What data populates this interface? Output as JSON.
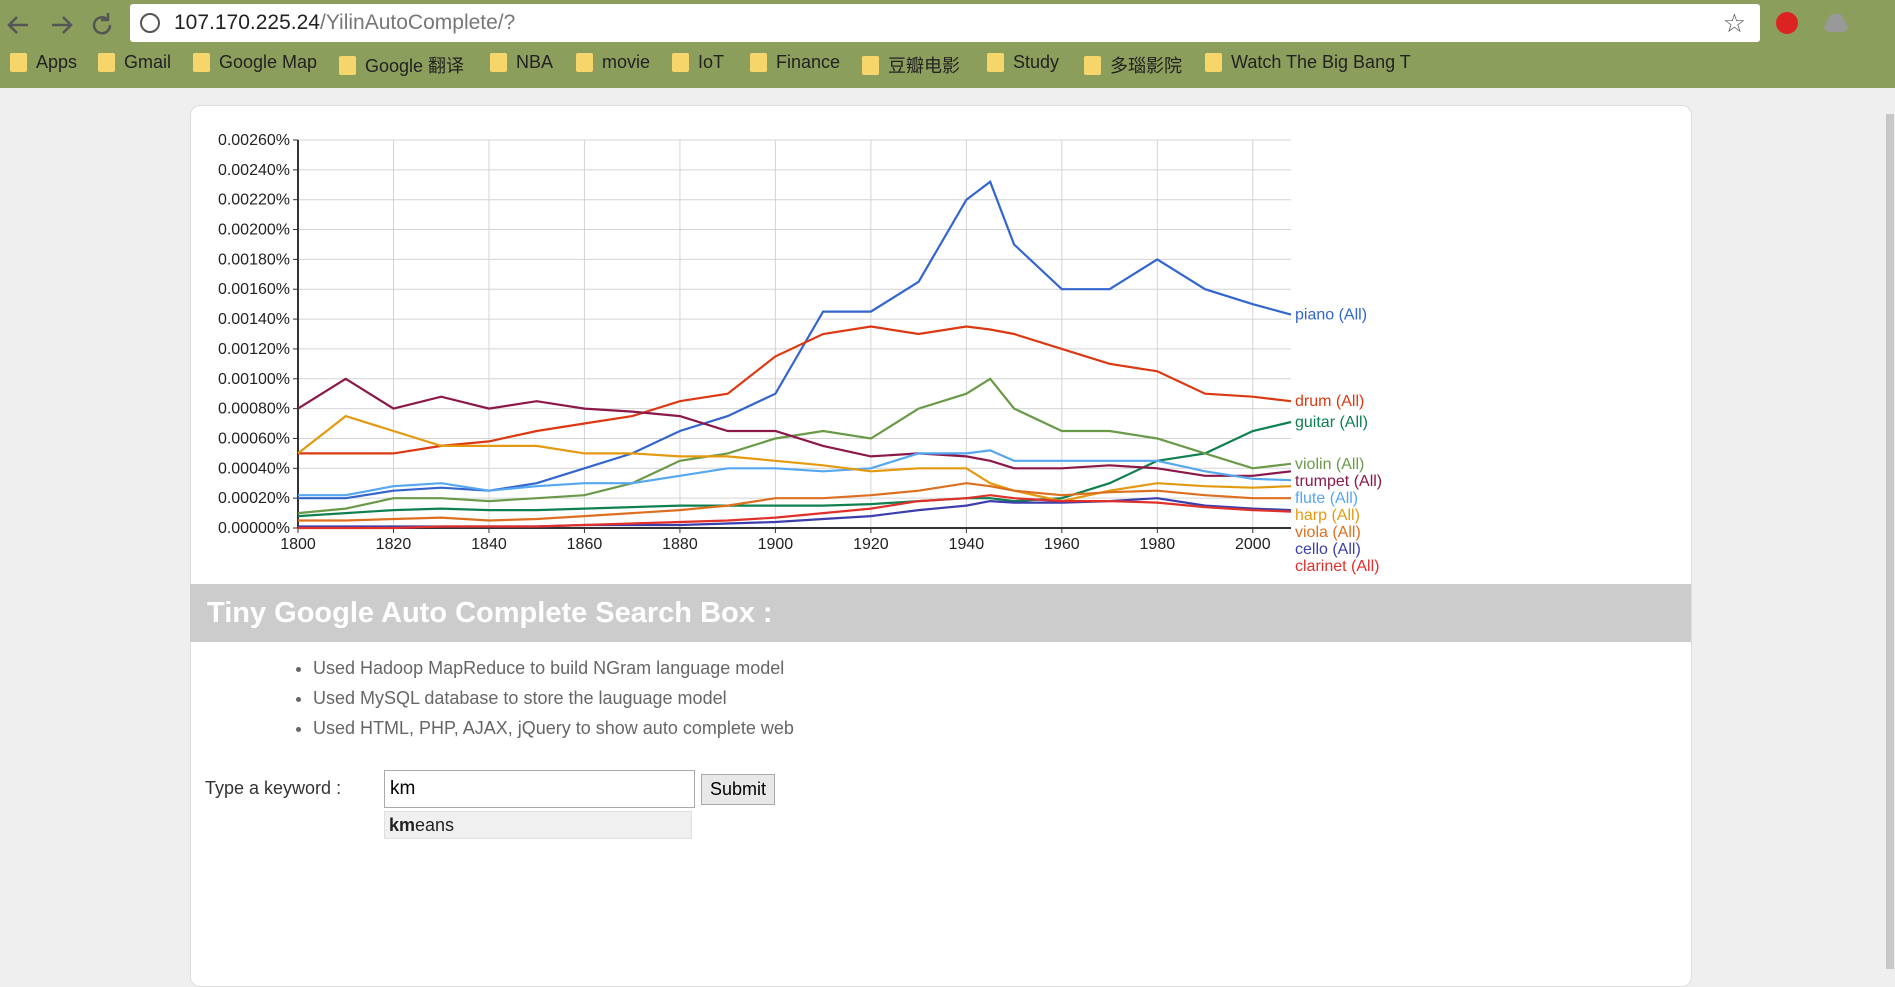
{
  "browser": {
    "url_host": "107.170.225.24",
    "url_path": "/YilinAutoComplete/?",
    "bookmarks": [
      "Apps",
      "Gmail",
      "Google Map",
      "Google 翻译",
      "NBA",
      "movie",
      "IoT",
      "Finance",
      "豆瓣电影",
      "Study",
      "多瑙影院",
      "Watch The Big Bang T"
    ]
  },
  "chart_data": {
    "type": "line",
    "x": [
      1800,
      1810,
      1820,
      1830,
      1840,
      1850,
      1860,
      1870,
      1880,
      1890,
      1900,
      1910,
      1920,
      1930,
      1940,
      1945,
      1950,
      1960,
      1970,
      1980,
      1990,
      2000,
      2008
    ],
    "xlim": [
      1800,
      2008
    ],
    "xticks": [
      1800,
      1820,
      1840,
      1860,
      1880,
      1900,
      1920,
      1940,
      1960,
      1980,
      2000
    ],
    "ylim": [
      0,
      0.0026
    ],
    "yticks": [
      {
        "value": 0,
        "label": "0.00000%"
      },
      {
        "value": 0.0002,
        "label": "0.00020%"
      },
      {
        "value": 0.0004,
        "label": "0.00040%"
      },
      {
        "value": 0.0006,
        "label": "0.00060%"
      },
      {
        "value": 0.0008,
        "label": "0.00080%"
      },
      {
        "value": 0.001,
        "label": "0.00100%"
      },
      {
        "value": 0.0012,
        "label": "0.00120%"
      },
      {
        "value": 0.0014,
        "label": "0.00140%"
      },
      {
        "value": 0.0016,
        "label": "0.00160%"
      },
      {
        "value": 0.0018,
        "label": "0.00180%"
      },
      {
        "value": 0.002,
        "label": "0.00200%"
      },
      {
        "value": 0.0022,
        "label": "0.00220%"
      },
      {
        "value": 0.0024,
        "label": "0.00240%"
      },
      {
        "value": 0.0026,
        "label": "0.00260%"
      }
    ],
    "grid": true,
    "series": [
      {
        "name": "piano (All)",
        "color": "#3366cc",
        "values": [
          0.0002,
          0.0002,
          0.00025,
          0.00027,
          0.00025,
          0.0003,
          0.0004,
          0.0005,
          0.00065,
          0.00075,
          0.0009,
          0.00145,
          0.00145,
          0.00165,
          0.0022,
          0.00232,
          0.0019,
          0.0016,
          0.0016,
          0.0018,
          0.0016,
          0.0015,
          0.00143
        ]
      },
      {
        "name": "drum (All)",
        "color": "#dc3912",
        "values": [
          0.0005,
          0.0005,
          0.0005,
          0.00055,
          0.00058,
          0.00065,
          0.0007,
          0.00075,
          0.00085,
          0.0009,
          0.00115,
          0.0013,
          0.00135,
          0.0013,
          0.00135,
          0.00133,
          0.0013,
          0.0012,
          0.0011,
          0.00105,
          0.0009,
          0.00088,
          0.00085
        ]
      },
      {
        "name": "guitar (All)",
        "color": "#0f8050",
        "values": [
          8e-05,
          0.0001,
          0.00012,
          0.00013,
          0.00012,
          0.00012,
          0.00013,
          0.00014,
          0.00015,
          0.00015,
          0.00015,
          0.00015,
          0.00016,
          0.00018,
          0.0002,
          0.0002,
          0.00018,
          0.0002,
          0.0003,
          0.00045,
          0.0005,
          0.00065,
          0.00071
        ]
      },
      {
        "name": "violin (All)",
        "color": "#6a9a48",
        "values": [
          0.0001,
          0.00013,
          0.0002,
          0.0002,
          0.00018,
          0.0002,
          0.00022,
          0.0003,
          0.00045,
          0.0005,
          0.0006,
          0.00065,
          0.0006,
          0.0008,
          0.0009,
          0.001,
          0.0008,
          0.00065,
          0.00065,
          0.0006,
          0.0005,
          0.0004,
          0.00043
        ]
      },
      {
        "name": "trumpet (All)",
        "color": "#8b1848",
        "values": [
          0.0008,
          0.001,
          0.0008,
          0.00088,
          0.0008,
          0.00085,
          0.0008,
          0.00078,
          0.00075,
          0.00065,
          0.00065,
          0.00055,
          0.00048,
          0.0005,
          0.00048,
          0.00045,
          0.0004,
          0.0004,
          0.00042,
          0.0004,
          0.00035,
          0.00035,
          0.00038
        ]
      },
      {
        "name": "flute (All)",
        "color": "#55a7f0",
        "values": [
          0.00022,
          0.00022,
          0.00028,
          0.0003,
          0.00025,
          0.00028,
          0.0003,
          0.0003,
          0.00035,
          0.0004,
          0.0004,
          0.00038,
          0.0004,
          0.0005,
          0.0005,
          0.00052,
          0.00045,
          0.00045,
          0.00045,
          0.00045,
          0.00038,
          0.00033,
          0.00032
        ]
      },
      {
        "name": "harp (All)",
        "color": "#e39a10",
        "values": [
          0.0005,
          0.00075,
          0.00065,
          0.00055,
          0.00055,
          0.00055,
          0.0005,
          0.0005,
          0.00048,
          0.00048,
          0.00045,
          0.00042,
          0.00038,
          0.0004,
          0.0004,
          0.0003,
          0.00025,
          0.00018,
          0.00025,
          0.0003,
          0.00028,
          0.00027,
          0.00028
        ]
      },
      {
        "name": "viola (All)",
        "color": "#dd7020",
        "values": [
          5e-05,
          5e-05,
          6e-05,
          7e-05,
          5e-05,
          6e-05,
          8e-05,
          0.0001,
          0.00012,
          0.00015,
          0.0002,
          0.0002,
          0.00022,
          0.00025,
          0.0003,
          0.00028,
          0.00025,
          0.00022,
          0.00024,
          0.00025,
          0.00022,
          0.0002,
          0.0002
        ]
      },
      {
        "name": "cello (All)",
        "color": "#3b3eac",
        "values": [
          1e-05,
          1e-05,
          1e-05,
          1e-05,
          1e-05,
          1e-05,
          2e-05,
          2e-05,
          2e-05,
          3e-05,
          4e-05,
          6e-05,
          8e-05,
          0.00012,
          0.00015,
          0.00018,
          0.00017,
          0.00017,
          0.00018,
          0.0002,
          0.00015,
          0.00013,
          0.00012
        ]
      },
      {
        "name": "clarinet (All)",
        "color": "#e0302a",
        "values": [
          0,
          0,
          0,
          1e-05,
          1e-05,
          1e-05,
          2e-05,
          3e-05,
          4e-05,
          5e-05,
          7e-05,
          0.0001,
          0.00013,
          0.00018,
          0.0002,
          0.00022,
          0.0002,
          0.00018,
          0.00018,
          0.00017,
          0.00014,
          0.00012,
          0.00011
        ]
      }
    ]
  },
  "section": {
    "title": "Tiny Google Auto Complete Search Box :",
    "bullets": [
      "Used Hadoop MapReduce to build NGram language model",
      "Used MySQL database to store the lauguage model",
      "Used HTML, PHP, AJAX, jQuery to show auto complete web"
    ]
  },
  "form": {
    "label": "Type a keyword :",
    "input": "km",
    "button": "Submit",
    "suggestion": {
      "match": "km",
      "rest": "eans"
    }
  }
}
